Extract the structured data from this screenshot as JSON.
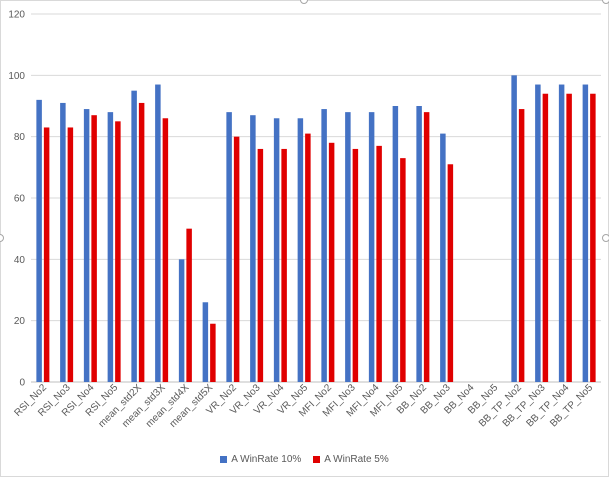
{
  "chart_data": {
    "type": "bar",
    "categories": [
      "RSI_No2",
      "RSI_No3",
      "RSI_No4",
      "RSI_No5",
      "mean_std2X",
      "mean_std3X",
      "mean_std4X",
      "mean_std5X",
      "VR_No2",
      "VR_No3",
      "VR_No4",
      "VR_No5",
      "MFI_No2",
      "MFI_No3",
      "MFI_No4",
      "MFI_No5",
      "BB_No2",
      "BB_No3",
      "BB_No4",
      "BB_No5",
      "BB_TP_No2",
      "BB_TP_No3",
      "BB_TP_No4",
      "BB_TP_No5"
    ],
    "series": [
      {
        "name": "A WinRate 10%",
        "color": "#4472c4",
        "values": [
          92,
          91,
          89,
          88,
          95,
          97,
          40,
          26,
          88,
          87,
          86,
          86,
          89,
          88,
          88,
          90,
          90,
          81,
          null,
          null,
          100,
          97,
          97,
          97
        ]
      },
      {
        "name": "A WinRate 5%",
        "color": "#e00000",
        "values": [
          83,
          83,
          87,
          85,
          91,
          86,
          50,
          19,
          80,
          76,
          76,
          81,
          78,
          76,
          77,
          73,
          88,
          71,
          null,
          null,
          89,
          94,
          94,
          94
        ]
      }
    ],
    "title": "",
    "xlabel": "",
    "ylabel": "",
    "ylim": [
      0,
      120
    ],
    "yticks": [
      0,
      20,
      40,
      60,
      80,
      100,
      120
    ],
    "grid": true,
    "legend_position": "bottom"
  }
}
